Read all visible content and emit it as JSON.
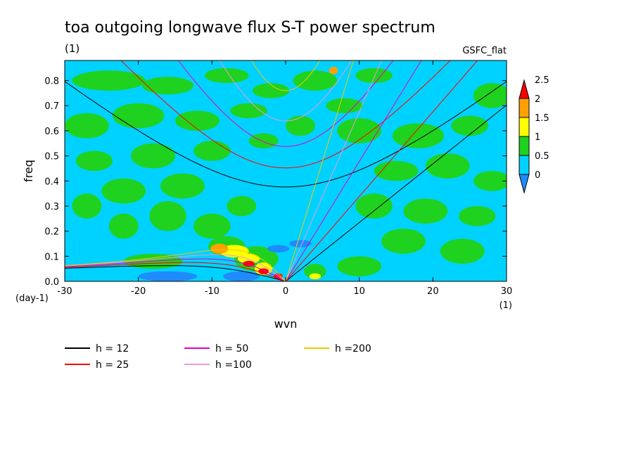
{
  "chart_data": {
    "type": "heatmap",
    "title": "toa outgoing longwave flux S-T power spectrum",
    "subtitle_left": "(1)",
    "subtitle_right": "GSFC_flat",
    "xlabel": "wvn",
    "ylabel": "freq",
    "x_unit": "(1)",
    "y_unit": "(day-1)",
    "xlim": [
      -30,
      30
    ],
    "ylim": [
      0,
      0.88
    ],
    "x_ticks": [
      -30,
      -20,
      -10,
      0,
      10,
      20,
      30
    ],
    "y_ticks": [
      0.0,
      0.1,
      0.2,
      0.3,
      0.4,
      0.5,
      0.6,
      0.7,
      0.8
    ],
    "colorbar": {
      "levels": [
        0,
        0.5,
        1,
        1.5,
        2,
        2.5
      ],
      "colors": [
        "#1e8cff",
        "#00d2ff",
        "#1fd21f",
        "#ffff00",
        "#ffa000",
        "#ff0000"
      ]
    },
    "dispersion_curves": [
      {
        "label": "h = 12",
        "h": 12,
        "color": "#000000"
      },
      {
        "label": "h = 25",
        "h": 25,
        "color": "#ff0000"
      },
      {
        "label": "h = 50",
        "h": 50,
        "color": "#e000c8"
      },
      {
        "label": "h =100",
        "h": 100,
        "color": "#e69bd8"
      },
      {
        "label": "h =200",
        "h": 200,
        "color": "#f0c800"
      }
    ]
  }
}
